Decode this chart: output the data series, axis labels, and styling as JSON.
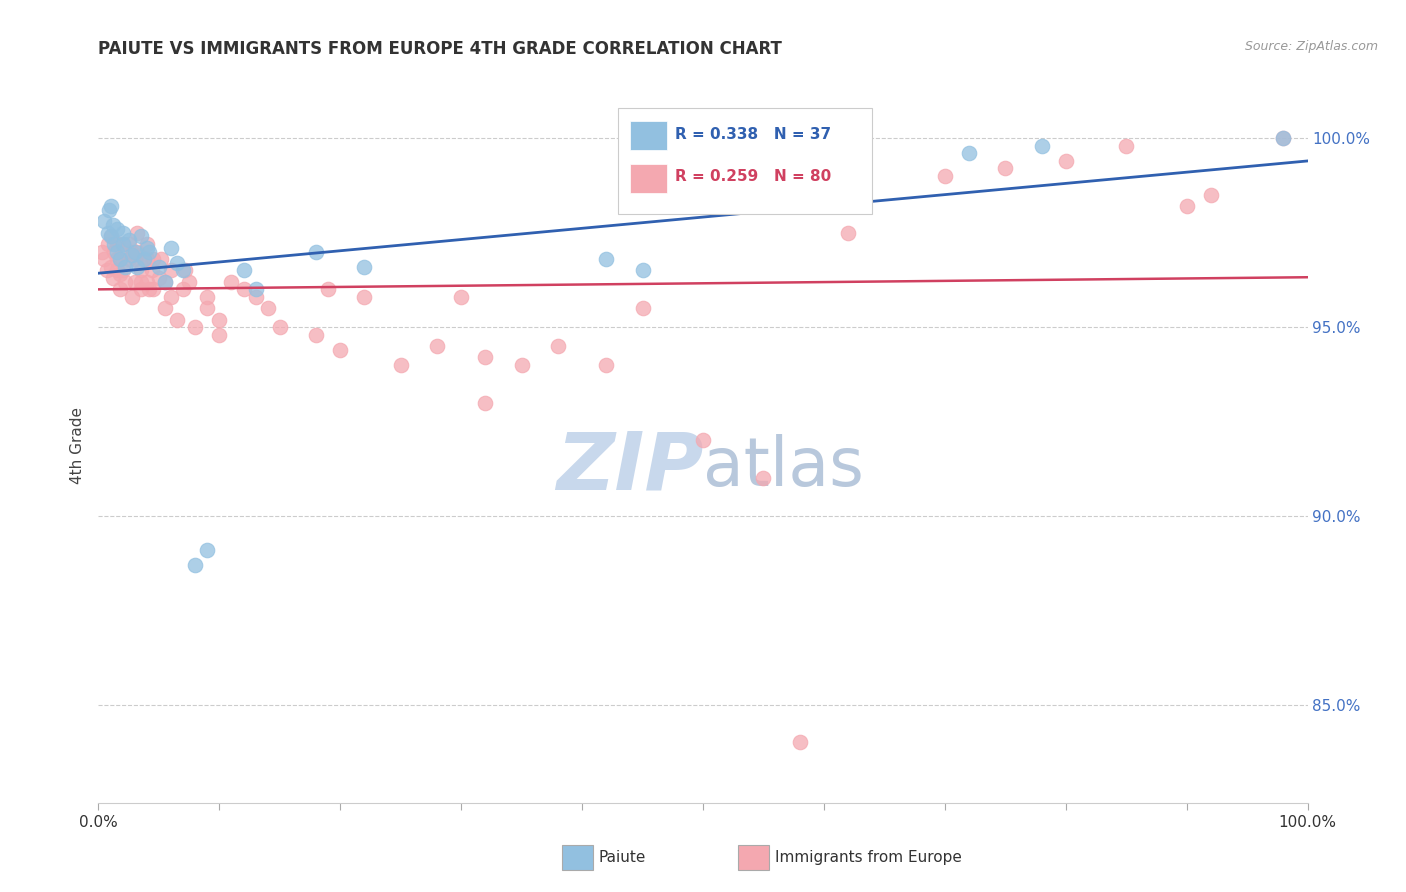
{
  "title": "PAIUTE VS IMMIGRANTS FROM EUROPE 4TH GRADE CORRELATION CHART",
  "source": "Source: ZipAtlas.com",
  "ylabel": "4th Grade",
  "xlim": [
    0.0,
    1.0
  ],
  "ylim": [
    0.824,
    1.013
  ],
  "legend_blue_label": "Paiute",
  "legend_pink_label": "Immigrants from Europe",
  "R_blue": 0.338,
  "N_blue": 37,
  "R_pink": 0.259,
  "N_pink": 80,
  "blue_color": "#92c0e0",
  "pink_color": "#f4a8b0",
  "blue_line_color": "#3060b0",
  "pink_line_color": "#d04060",
  "watermark_zip": "ZIP",
  "watermark_atlas": "atlas",
  "watermark_color_zip": "#c8d8ec",
  "watermark_color_atlas": "#b8c8dc",
  "blue_x": [
    0.005,
    0.008,
    0.009,
    0.01,
    0.01,
    0.012,
    0.013,
    0.015,
    0.015,
    0.018,
    0.02,
    0.02,
    0.022,
    0.025,
    0.028,
    0.03,
    0.032,
    0.035,
    0.038,
    0.04,
    0.042,
    0.05,
    0.055,
    0.06,
    0.065,
    0.07,
    0.08,
    0.09,
    0.12,
    0.13,
    0.18,
    0.22,
    0.42,
    0.45,
    0.72,
    0.78,
    0.98
  ],
  "blue_y": [
    0.978,
    0.975,
    0.981,
    0.974,
    0.982,
    0.977,
    0.972,
    0.976,
    0.97,
    0.968,
    0.975,
    0.972,
    0.966,
    0.973,
    0.969,
    0.97,
    0.966,
    0.974,
    0.968,
    0.971,
    0.97,
    0.966,
    0.962,
    0.971,
    0.967,
    0.965,
    0.887,
    0.891,
    0.965,
    0.96,
    0.97,
    0.966,
    0.968,
    0.965,
    0.996,
    0.998,
    1.0
  ],
  "pink_x": [
    0.003,
    0.005,
    0.007,
    0.008,
    0.01,
    0.01,
    0.012,
    0.013,
    0.015,
    0.015,
    0.015,
    0.018,
    0.018,
    0.018,
    0.02,
    0.02,
    0.022,
    0.025,
    0.025,
    0.028,
    0.028,
    0.03,
    0.03,
    0.032,
    0.032,
    0.035,
    0.035,
    0.035,
    0.038,
    0.04,
    0.04,
    0.04,
    0.042,
    0.044,
    0.045,
    0.045,
    0.05,
    0.052,
    0.055,
    0.055,
    0.06,
    0.06,
    0.065,
    0.07,
    0.072,
    0.075,
    0.08,
    0.09,
    0.09,
    0.1,
    0.1,
    0.11,
    0.12,
    0.13,
    0.14,
    0.15,
    0.18,
    0.19,
    0.2,
    0.22,
    0.25,
    0.28,
    0.3,
    0.32,
    0.35,
    0.38,
    0.32,
    0.42,
    0.45,
    0.5,
    0.55,
    0.58,
    0.62,
    0.7,
    0.75,
    0.8,
    0.85,
    0.9,
    0.92,
    0.98
  ],
  "pink_y": [
    0.97,
    0.968,
    0.965,
    0.972,
    0.974,
    0.966,
    0.963,
    0.97,
    0.965,
    0.972,
    0.968,
    0.964,
    0.96,
    0.968,
    0.965,
    0.972,
    0.962,
    0.968,
    0.972,
    0.958,
    0.97,
    0.968,
    0.962,
    0.97,
    0.975,
    0.96,
    0.965,
    0.962,
    0.968,
    0.962,
    0.968,
    0.972,
    0.96,
    0.965,
    0.968,
    0.96,
    0.963,
    0.968,
    0.962,
    0.955,
    0.958,
    0.965,
    0.952,
    0.96,
    0.965,
    0.962,
    0.95,
    0.958,
    0.955,
    0.952,
    0.948,
    0.962,
    0.96,
    0.958,
    0.955,
    0.95,
    0.948,
    0.96,
    0.944,
    0.958,
    0.94,
    0.945,
    0.958,
    0.942,
    0.94,
    0.945,
    0.93,
    0.94,
    0.955,
    0.92,
    0.91,
    0.84,
    0.975,
    0.99,
    0.992,
    0.994,
    0.998,
    0.982,
    0.985,
    1.0
  ]
}
